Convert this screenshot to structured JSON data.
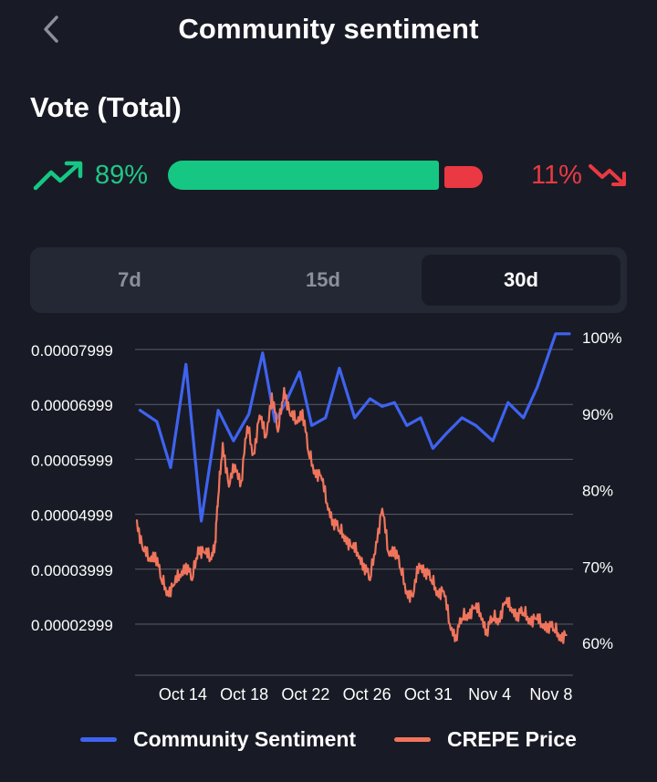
{
  "header": {
    "title": "Community sentiment",
    "back_icon": "chevron-left-icon"
  },
  "vote": {
    "title": "Vote (Total)",
    "up_percent_label": "89%",
    "down_percent_label": "11%",
    "up_share": 0.89,
    "down_share": 0.11,
    "up_color": "#16c784",
    "down_color": "#ea3943"
  },
  "tabs": [
    {
      "label": "7d",
      "active": false
    },
    {
      "label": "15d",
      "active": false
    },
    {
      "label": "30d",
      "active": true
    }
  ],
  "chart_data": {
    "type": "line",
    "title": "",
    "xlabel": "",
    "ylabel": "",
    "x_tick_labels": [
      "Oct 14",
      "Oct 18",
      "Oct 22",
      "Oct 26",
      "Oct 31",
      "Nov 4",
      "Nov 8"
    ],
    "x_tick_days": [
      3,
      7,
      11,
      15,
      19,
      23,
      27
    ],
    "x_range_days": [
      0,
      28.2
    ],
    "y_left_ticks": [
      "0.00007999",
      "0.00006999",
      "0.00005999",
      "0.00004999",
      "0.00003999",
      "0.00002999"
    ],
    "y_left_range": [
      2.999e-05,
      7.999e-05
    ],
    "y_right_ticks": [
      "100%",
      "90%",
      "80%",
      "70%",
      "60%"
    ],
    "y_right_range": [
      60,
      100
    ],
    "grid": true,
    "legend_position": "bottom",
    "series": [
      {
        "name": "Community Sentiment",
        "axis": "right",
        "color": "#3f63f0",
        "x": [
          0.2,
          1.3,
          2.2,
          3.2,
          4.2,
          5.3,
          6.3,
          7.3,
          8.2,
          9.0,
          9.7,
          10.6,
          11.4,
          12.3,
          13.2,
          14.2,
          15.2,
          16.0,
          16.8,
          17.6,
          18.5,
          19.3,
          20.2,
          21.2,
          22.1,
          23.2,
          24.2,
          25.2,
          26.1,
          27.3,
          28.2
        ],
        "y": [
          90.5,
          89,
          83,
          96.5,
          76,
          90.5,
          86.5,
          90,
          98,
          89,
          91.5,
          95.5,
          88.5,
          89.5,
          96,
          89.5,
          92,
          91,
          91.5,
          88.5,
          89.5,
          85.5,
          87.5,
          89.5,
          88.5,
          86.5,
          91.5,
          89.5,
          93.5,
          100.5,
          100.5
        ]
      },
      {
        "name": "CREPE Price",
        "axis": "left",
        "color": "#f0745c",
        "x": [
          0.0,
          0.4,
          0.8,
          1.2,
          1.6,
          2.0,
          2.4,
          2.8,
          3.2,
          3.6,
          4.0,
          4.4,
          4.8,
          5.1,
          5.3,
          5.6,
          6.0,
          6.4,
          6.8,
          7.2,
          7.6,
          8.0,
          8.4,
          8.8,
          9.2,
          9.6,
          10.0,
          10.4,
          10.8,
          11.2,
          11.6,
          12.0,
          12.4,
          12.8,
          13.2,
          13.6,
          14.0,
          14.4,
          14.8,
          15.2,
          15.6,
          16.0,
          16.4,
          16.8,
          17.2,
          17.6,
          18.0,
          18.4,
          18.8,
          19.2,
          19.6,
          20.0,
          20.4,
          20.8,
          21.2,
          21.6,
          22.0,
          22.4,
          22.8,
          23.2,
          23.6,
          24.0,
          24.4,
          24.8,
          25.2,
          25.6,
          26.0,
          26.4,
          26.8,
          27.2,
          27.6,
          28.0
        ],
        "y": [
          4.89e-05,
          4.35e-05,
          4.2e-05,
          4.3e-05,
          3.8e-05,
          3.6e-05,
          3.7e-05,
          3.9e-05,
          4.1e-05,
          3.8e-05,
          4.4e-05,
          4.3e-05,
          4.2e-05,
          4.5e-05,
          5.3e-05,
          6.3e-05,
          5.5e-05,
          5.9e-05,
          5.6e-05,
          6.6e-05,
          6.1e-05,
          6.8e-05,
          6.4e-05,
          7.2e-05,
          6.5e-05,
          7.3e-05,
          6.8e-05,
          6.7e-05,
          6.9e-05,
          6.1e-05,
          5.8e-05,
          5.7e-05,
          5.2e-05,
          4.9e-05,
          4.7e-05,
          4.6e-05,
          4.4e-05,
          4.3e-05,
          4.1e-05,
          3.8e-05,
          4.5e-05,
          5.1e-05,
          4.3e-05,
          4.4e-05,
          4e-05,
          3.6e-05,
          3.5e-05,
          4.1e-05,
          4e-05,
          3.8e-05,
          3.6e-05,
          3.6e-05,
          3e-05,
          2.8e-05,
          3.1e-05,
          3.2e-05,
          3.3e-05,
          3.2e-05,
          2.9e-05,
          3.1e-05,
          3.1e-05,
          3.4e-05,
          3.3e-05,
          3.2e-05,
          3.2e-05,
          3.1e-05,
          3.1e-05,
          3e-05,
          3e-05,
          2.9e-05,
          2.8e-05,
          2.8e-05
        ]
      }
    ]
  }
}
